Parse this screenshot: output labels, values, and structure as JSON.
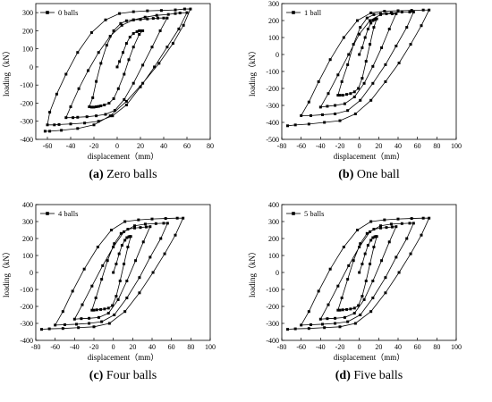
{
  "chart_data": [
    {
      "panel_id": "a",
      "type": "line",
      "caption_letter": "(a)",
      "caption_text": "Zero balls",
      "xlabel": "displacement（mm）",
      "ylabel": "loading（kN）",
      "xlim": [
        -70,
        80
      ],
      "ylim": [
        -400,
        350
      ],
      "xticks": [
        -60,
        -40,
        -20,
        0,
        20,
        40,
        60,
        80
      ],
      "yticks": [
        -400,
        -300,
        -200,
        -100,
        0,
        100,
        200,
        300
      ],
      "legend": "top-left",
      "series": [
        {
          "name": "0 balls",
          "x": [
            0,
            2,
            5,
            8,
            11,
            14,
            17,
            19,
            20,
            22,
            19,
            14,
            10,
            6,
            1,
            -3,
            -7,
            -11,
            -14,
            -16,
            -18,
            -20,
            -22,
            -24,
            -21,
            -18,
            -14,
            -9,
            -3,
            3,
            8,
            14,
            20,
            26,
            31,
            35,
            40,
            43,
            37,
            30,
            22,
            14,
            6,
            -2,
            -10,
            -18,
            -26,
            -34,
            -38,
            -44,
            -40,
            -33,
            -25,
            -16,
            -6,
            4,
            14,
            24,
            34,
            44,
            50,
            54,
            60,
            53,
            43,
            32,
            20,
            8,
            -4,
            -16,
            -28,
            -40,
            -50,
            -54,
            -60,
            -58,
            -52,
            -44,
            -34,
            -22,
            -10,
            2,
            14,
            26,
            38,
            50,
            58,
            63,
            57,
            48,
            36,
            22,
            8,
            -6,
            -20,
            -34,
            -48,
            -58,
            -62
          ],
          "y": [
            0,
            30,
            80,
            130,
            165,
            185,
            195,
            200,
            200,
            200,
            180,
            110,
            40,
            -40,
            -120,
            -175,
            -200,
            -210,
            -215,
            -218,
            -220,
            -222,
            -222,
            -220,
            -170,
            -80,
            20,
            120,
            200,
            240,
            255,
            260,
            262,
            265,
            268,
            270,
            270,
            270,
            200,
            110,
            10,
            -90,
            -180,
            -240,
            -262,
            -270,
            -275,
            -278,
            -280,
            -280,
            -220,
            -120,
            -20,
            80,
            170,
            230,
            260,
            275,
            285,
            290,
            295,
            298,
            300,
            210,
            110,
            0,
            -110,
            -210,
            -270,
            -300,
            -310,
            -315,
            -318,
            -320,
            -320,
            -250,
            -150,
            -40,
            80,
            190,
            260,
            295,
            305,
            310,
            312,
            315,
            320,
            320,
            230,
            130,
            20,
            -90,
            -190,
            -270,
            -320,
            -340,
            -350,
            -355,
            -355
          ]
        }
      ]
    },
    {
      "panel_id": "b",
      "type": "line",
      "caption_letter": "(b)",
      "caption_text": "One ball",
      "xlabel": "displacement（mm）",
      "ylabel": "loading（kN）",
      "xlim": [
        -80,
        100
      ],
      "ylim": [
        -500,
        300
      ],
      "xticks": [
        -80,
        -60,
        -40,
        -20,
        0,
        20,
        40,
        60,
        80,
        100
      ],
      "yticks": [
        -500,
        -400,
        -300,
        -200,
        -100,
        0,
        100,
        200,
        300
      ],
      "legend": "top-left",
      "series": [
        {
          "name": "1 ball",
          "x": [
            0,
            3,
            6,
            9,
            12,
            14,
            16,
            17,
            18,
            15,
            11,
            7,
            3,
            -1,
            -5,
            -9,
            -13,
            -17,
            -20,
            -22,
            -18,
            -12,
            -6,
            1,
            8,
            15,
            22,
            28,
            34,
            38,
            31,
            23,
            14,
            5,
            -5,
            -15,
            -25,
            -33,
            -40,
            -32,
            -22,
            -11,
            0,
            11,
            22,
            33,
            44,
            52,
            56,
            49,
            38,
            27,
            14,
            1,
            -12,
            -25,
            -38,
            -50,
            -60,
            -52,
            -42,
            -30,
            -16,
            -2,
            12,
            26,
            40,
            54,
            66,
            72,
            64,
            53,
            41,
            27,
            12,
            -4,
            -20,
            -36,
            -52,
            -66,
            -74
          ],
          "y": [
            0,
            40,
            100,
            150,
            185,
            200,
            205,
            210,
            210,
            160,
            60,
            -40,
            -140,
            -200,
            -220,
            -230,
            -235,
            -240,
            -240,
            -240,
            -160,
            -60,
            60,
            160,
            215,
            235,
            240,
            240,
            240,
            240,
            150,
            40,
            -70,
            -170,
            -250,
            -290,
            -300,
            -305,
            -310,
            -230,
            -120,
            0,
            120,
            200,
            235,
            245,
            250,
            250,
            250,
            160,
            50,
            -60,
            -170,
            -270,
            -330,
            -350,
            -355,
            -360,
            -360,
            -280,
            -160,
            -30,
            100,
            200,
            245,
            255,
            258,
            260,
            262,
            262,
            170,
            60,
            -50,
            -160,
            -270,
            -350,
            -390,
            -400,
            -410,
            -415,
            -420
          ]
        }
      ]
    },
    {
      "panel_id": "c",
      "type": "line",
      "caption_letter": "(c)",
      "caption_text": "Four balls",
      "xlabel": "displacement（mm）",
      "ylabel": "loading（kN）",
      "xlim": [
        -80,
        100
      ],
      "ylim": [
        -400,
        400
      ],
      "xticks": [
        -80,
        -60,
        -40,
        -20,
        0,
        20,
        40,
        60,
        80,
        100
      ],
      "yticks": [
        -400,
        -300,
        -200,
        -100,
        0,
        100,
        200,
        300,
        400
      ],
      "legend": "top-left",
      "series": [
        {
          "name": "4 balls",
          "x": [
            0,
            3,
            6,
            9,
            12,
            14,
            16,
            17,
            18,
            15,
            11,
            7,
            3,
            -1,
            -5,
            -9,
            -13,
            -17,
            -20,
            -22,
            -18,
            -12,
            -6,
            1,
            8,
            15,
            22,
            28,
            34,
            38,
            31,
            23,
            14,
            5,
            -5,
            -15,
            -25,
            -33,
            -40,
            -32,
            -22,
            -11,
            0,
            11,
            22,
            33,
            44,
            52,
            56,
            49,
            38,
            27,
            14,
            1,
            -12,
            -25,
            -38,
            -50,
            -60,
            -52,
            -42,
            -30,
            -16,
            -2,
            12,
            26,
            40,
            54,
            66,
            72,
            64,
            53,
            41,
            27,
            12,
            -4,
            -20,
            -36,
            -52,
            -66,
            -74
          ],
          "y": [
            0,
            50,
            110,
            160,
            190,
            205,
            210,
            212,
            212,
            150,
            50,
            -50,
            -140,
            -195,
            -210,
            -215,
            -218,
            -220,
            -222,
            -222,
            -150,
            -40,
            70,
            170,
            230,
            255,
            262,
            265,
            268,
            270,
            180,
            70,
            -50,
            -160,
            -240,
            -265,
            -270,
            -272,
            -275,
            -190,
            -80,
            40,
            150,
            240,
            275,
            285,
            288,
            290,
            290,
            200,
            90,
            -30,
            -150,
            -250,
            -290,
            -300,
            -305,
            -308,
            -310,
            -230,
            -110,
            20,
            150,
            250,
            300,
            310,
            315,
            318,
            320,
            320,
            220,
            110,
            0,
            -120,
            -230,
            -300,
            -320,
            -325,
            -330,
            -332,
            -335
          ]
        }
      ]
    },
    {
      "panel_id": "d",
      "type": "line",
      "caption_letter": "(d)",
      "caption_text": "Five balls",
      "xlabel": "displacement（mm）",
      "ylabel": "loading（kN）",
      "xlim": [
        -80,
        100
      ],
      "ylim": [
        -400,
        400
      ],
      "xticks": [
        -80,
        -60,
        -40,
        -20,
        0,
        20,
        40,
        60,
        80,
        100
      ],
      "yticks": [
        -400,
        -300,
        -200,
        -100,
        0,
        100,
        200,
        300,
        400
      ],
      "legend": "top-left",
      "series": [
        {
          "name": "5 balls",
          "x": [
            0,
            3,
            6,
            9,
            12,
            14,
            16,
            17,
            18,
            15,
            11,
            7,
            3,
            -1,
            -5,
            -9,
            -13,
            -17,
            -20,
            -22,
            -18,
            -12,
            -6,
            1,
            8,
            15,
            22,
            28,
            34,
            38,
            31,
            23,
            14,
            5,
            -5,
            -15,
            -25,
            -33,
            -40,
            -32,
            -22,
            -11,
            0,
            11,
            22,
            33,
            44,
            52,
            56,
            49,
            38,
            27,
            14,
            1,
            -12,
            -25,
            -38,
            -50,
            -60,
            -52,
            -42,
            -30,
            -16,
            -2,
            12,
            26,
            40,
            54,
            66,
            72,
            64,
            53,
            41,
            27,
            12,
            -4,
            -20,
            -36,
            -52,
            -66,
            -74
          ],
          "y": [
            0,
            50,
            110,
            160,
            190,
            205,
            210,
            212,
            212,
            150,
            50,
            -50,
            -140,
            -195,
            -210,
            -215,
            -218,
            -220,
            -222,
            -222,
            -150,
            -40,
            70,
            170,
            230,
            255,
            262,
            265,
            268,
            270,
            180,
            70,
            -50,
            -160,
            -240,
            -265,
            -270,
            -272,
            -275,
            -190,
            -80,
            40,
            150,
            240,
            275,
            285,
            288,
            290,
            290,
            200,
            90,
            -30,
            -150,
            -250,
            -290,
            -300,
            -305,
            -308,
            -310,
            -230,
            -110,
            20,
            150,
            250,
            300,
            310,
            315,
            318,
            320,
            320,
            220,
            110,
            0,
            -120,
            -230,
            -300,
            -320,
            -325,
            -330,
            -332,
            -335
          ]
        }
      ]
    }
  ]
}
